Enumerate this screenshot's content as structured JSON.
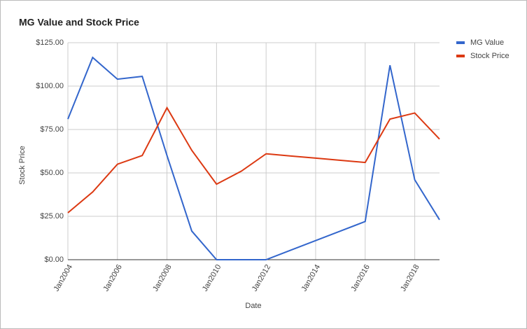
{
  "chart_data": {
    "type": "line",
    "title": "MG Value and Stock Price",
    "x_label": "Date",
    "y_label": "Stock Price",
    "x": [
      2004,
      2005,
      2006,
      2007,
      2008,
      2009,
      2010,
      2011,
      2012,
      2013,
      2014,
      2015,
      2016,
      2017,
      2018,
      2019
    ],
    "xlim": [
      2004,
      2019
    ],
    "xticks": [
      {
        "value": 2004,
        "label": "Jan2004"
      },
      {
        "value": 2006,
        "label": "Jan2006"
      },
      {
        "value": 2008,
        "label": "Jan2008"
      },
      {
        "value": 2010,
        "label": "Jan2010"
      },
      {
        "value": 2012,
        "label": "Jan2012"
      },
      {
        "value": 2014,
        "label": "Jan2014"
      },
      {
        "value": 2016,
        "label": "Jan2016"
      },
      {
        "value": 2018,
        "label": "Jan2018"
      }
    ],
    "ylim": [
      0,
      125
    ],
    "yticks": [
      {
        "value": 0,
        "label": "$0.00"
      },
      {
        "value": 25,
        "label": "$25.00"
      },
      {
        "value": 50,
        "label": "$50.00"
      },
      {
        "value": 75,
        "label": "$75.00"
      },
      {
        "value": 100,
        "label": "$100.00"
      },
      {
        "value": 125,
        "label": "$125.00"
      }
    ],
    "grid": true,
    "legend": "right",
    "series": [
      {
        "name": "MG Value",
        "color": "#3366cc",
        "values": [
          81,
          116.5,
          104,
          105.6,
          60,
          16.5,
          0,
          0,
          0,
          5.5,
          11,
          16.5,
          22,
          112,
          46,
          23
        ]
      },
      {
        "name": "Stock Price",
        "color": "#dc3912",
        "values": [
          27,
          39,
          55,
          60,
          87.5,
          63,
          43.5,
          51,
          61,
          59.75,
          58.5,
          57.25,
          56,
          81,
          84.5,
          69.5
        ]
      }
    ]
  }
}
